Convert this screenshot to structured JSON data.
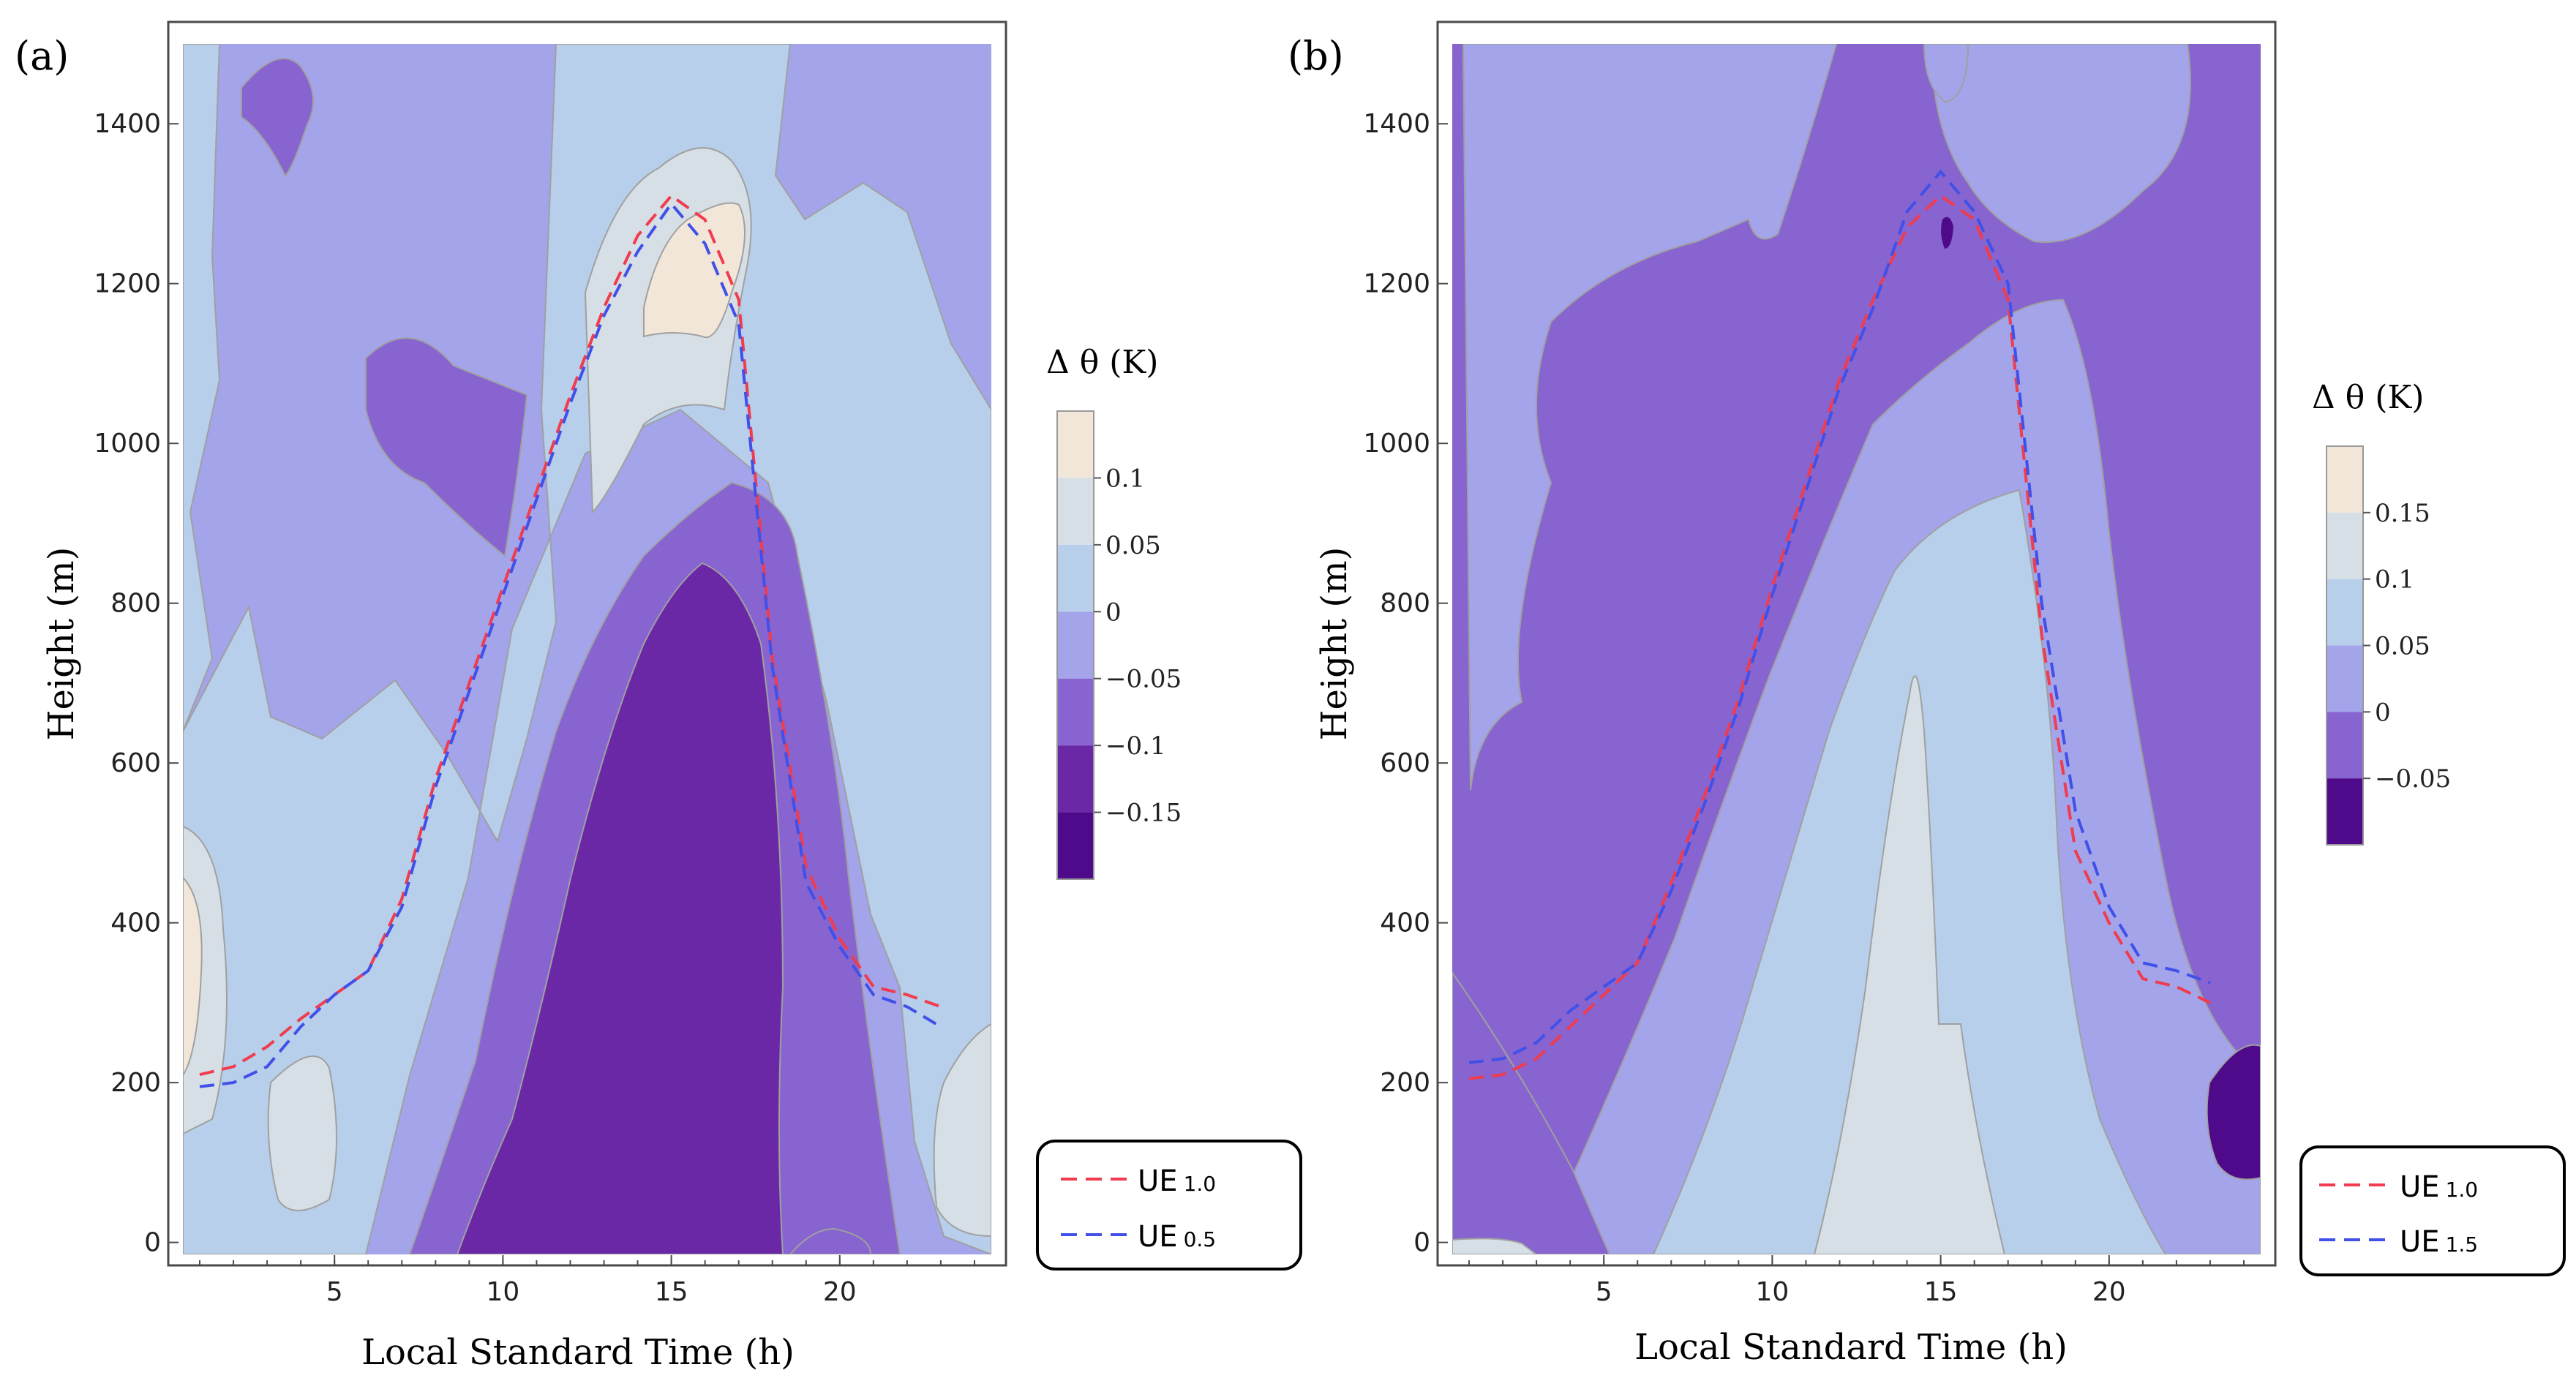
{
  "figure": {
    "xlabel": "Local Standard Time (h)",
    "ylabel": "Height (m)"
  },
  "chart_data": [
    {
      "type": "contour",
      "panel_label": "(a)",
      "xlabel": "Local Standard Time (h)",
      "ylabel": "Height (m)",
      "xlim": [
        0.5,
        24.5
      ],
      "ylim": [
        -15,
        1500
      ],
      "xticks": [
        "5",
        "10",
        "15",
        "20"
      ],
      "yticks": [
        "0",
        "200",
        "400",
        "600",
        "800",
        "1000",
        "1200",
        "1400"
      ],
      "colorbar": {
        "title": "Δ θ (K)",
        "levels": [
          "0.1",
          "0.05",
          "0",
          "−0.05",
          "−0.1",
          "−0.15"
        ],
        "colors": [
          "#f2e6d9",
          "#d6dfe6",
          "#b7cfea",
          "#a3a4ea",
          "#8764d0",
          "#6a28a6",
          "#4e0a8a"
        ]
      },
      "colors": {
        "c0": "#f2e6d9",
        "c1": "#d6dfe6",
        "c2": "#b7cfea",
        "c3": "#a3a4ea",
        "c4": "#8764d0",
        "c5": "#6a28a6",
        "c6": "#4e0a8a"
      },
      "series": [
        {
          "name": "UE 1.0",
          "label": "UE",
          "subscript": "1.0",
          "color": "#f03c4e",
          "x": [
            1,
            2,
            3,
            4,
            5,
            6,
            7,
            8,
            9,
            10,
            11,
            12,
            13,
            14,
            15,
            16,
            17,
            18,
            19,
            20,
            21,
            22,
            23
          ],
          "y": [
            210,
            220,
            245,
            280,
            310,
            340,
            430,
            580,
            700,
            820,
            940,
            1060,
            1170,
            1260,
            1310,
            1280,
            1180,
            730,
            470,
            380,
            320,
            310,
            295
          ]
        },
        {
          "name": "UE 0.5",
          "label": "UE",
          "subscript": "0.5",
          "color": "#4050e8",
          "x": [
            1,
            2,
            3,
            4,
            5,
            6,
            7,
            8,
            9,
            10,
            11,
            12,
            13,
            14,
            15,
            16,
            17,
            18,
            19,
            20,
            21,
            22,
            23
          ],
          "y": [
            195,
            200,
            220,
            270,
            310,
            340,
            420,
            570,
            690,
            810,
            930,
            1050,
            1160,
            1240,
            1300,
            1250,
            1150,
            720,
            450,
            370,
            310,
            295,
            270
          ]
        }
      ]
    },
    {
      "type": "contour",
      "panel_label": "(b)",
      "xlabel": "Local Standard Time (h)",
      "ylabel": "Height (m)",
      "xlim": [
        0.5,
        24.5
      ],
      "ylim": [
        -15,
        1500
      ],
      "xticks": [
        "5",
        "10",
        "15",
        "20"
      ],
      "yticks": [
        "0",
        "200",
        "400",
        "600",
        "800",
        "1000",
        "1200",
        "1400"
      ],
      "colorbar": {
        "title": "Δ θ (K)",
        "levels": [
          "0.15",
          "0.1",
          "0.05",
          "0",
          "−0.05"
        ],
        "colors": [
          "#f2e6d9",
          "#d6dfe6",
          "#b7cfea",
          "#a3a4ea",
          "#8764d0",
          "#4e0a8a"
        ]
      },
      "colors": {
        "c0": "#f2e6d9",
        "c1": "#d6dfe6",
        "c2": "#b7cfea",
        "c3": "#a3a4ea",
        "c4": "#8764d0",
        "c6": "#4e0a8a"
      },
      "series": [
        {
          "name": "UE 1.0",
          "label": "UE",
          "subscript": "1.0",
          "color": "#f03c4e",
          "x": [
            1,
            2,
            3,
            4,
            5,
            6,
            7,
            8,
            9,
            10,
            11,
            12,
            13,
            14,
            15,
            16,
            17,
            18,
            19,
            20,
            21,
            22,
            23
          ],
          "y": [
            205,
            210,
            230,
            270,
            310,
            350,
            450,
            560,
            680,
            820,
            950,
            1080,
            1180,
            1270,
            1310,
            1280,
            1180,
            760,
            490,
            400,
            330,
            320,
            300
          ]
        },
        {
          "name": "UE 1.5",
          "label": "UE",
          "subscript": "1.5",
          "color": "#4050e8",
          "x": [
            1,
            2,
            3,
            4,
            5,
            6,
            7,
            8,
            9,
            10,
            11,
            12,
            13,
            14,
            15,
            16,
            17,
            18,
            19,
            20,
            21,
            22,
            23
          ],
          "y": [
            225,
            230,
            250,
            290,
            320,
            350,
            440,
            550,
            670,
            810,
            940,
            1070,
            1170,
            1290,
            1340,
            1290,
            1200,
            800,
            540,
            420,
            350,
            340,
            325
          ]
        }
      ]
    }
  ]
}
